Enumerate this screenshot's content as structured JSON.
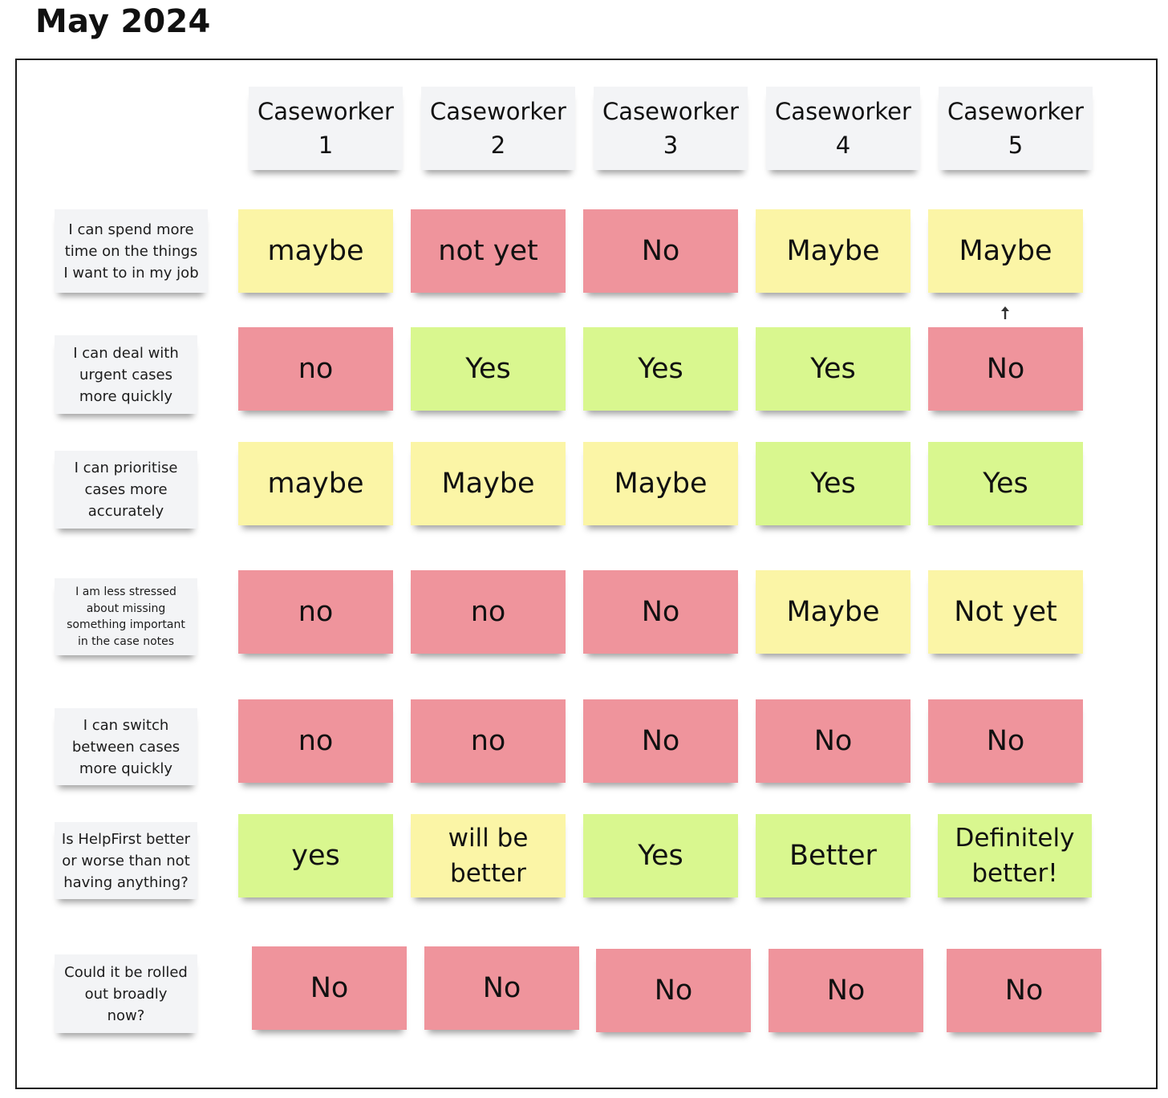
{
  "title": "May 2024",
  "colors": {
    "no": "#ef949c",
    "maybe": "#fbf5a6",
    "yes": "#d9f78f",
    "header": "#f3f4f6",
    "border": "#1a1a1a"
  },
  "columns": [
    {
      "label": "Caseworker\n1"
    },
    {
      "label": "Caseworker\n2"
    },
    {
      "label": "Caseworker\n3"
    },
    {
      "label": "Caseworker\n4"
    },
    {
      "label": "Caseworker\n5"
    }
  ],
  "rows": [
    {
      "label": "I can spend more\ntime on the things\nI want to in my job",
      "cells": [
        {
          "text": "maybe",
          "color": "yellow"
        },
        {
          "text": "not yet",
          "color": "red"
        },
        {
          "text": "No",
          "color": "red"
        },
        {
          "text": "Maybe",
          "color": "yellow"
        },
        {
          "text": "Maybe",
          "color": "yellow"
        }
      ]
    },
    {
      "label": "I can deal with\nurgent cases\nmore quickly",
      "cells": [
        {
          "text": "no",
          "color": "red"
        },
        {
          "text": "Yes",
          "color": "green"
        },
        {
          "text": "Yes",
          "color": "green"
        },
        {
          "text": "Yes",
          "color": "green"
        },
        {
          "text": "No",
          "color": "red"
        }
      ]
    },
    {
      "label": "I can prioritise\ncases more\naccurately",
      "cells": [
        {
          "text": "maybe",
          "color": "yellow"
        },
        {
          "text": "Maybe",
          "color": "yellow"
        },
        {
          "text": "Maybe",
          "color": "yellow"
        },
        {
          "text": "Yes",
          "color": "green"
        },
        {
          "text": "Yes",
          "color": "green"
        }
      ]
    },
    {
      "label": "I am less stressed\nabout missing\nsomething important\nin the case notes",
      "cells": [
        {
          "text": "no",
          "color": "red"
        },
        {
          "text": "no",
          "color": "red"
        },
        {
          "text": "No",
          "color": "red"
        },
        {
          "text": "Maybe",
          "color": "yellow"
        },
        {
          "text": "Not yet",
          "color": "yellow"
        }
      ]
    },
    {
      "label": "I can switch\nbetween cases\nmore quickly",
      "cells": [
        {
          "text": "no",
          "color": "red"
        },
        {
          "text": "no",
          "color": "red"
        },
        {
          "text": "No",
          "color": "red"
        },
        {
          "text": "No",
          "color": "red"
        },
        {
          "text": "No",
          "color": "red"
        }
      ]
    },
    {
      "label": "Is HelpFirst better\nor worse than not\nhaving anything?",
      "cells": [
        {
          "text": "yes",
          "color": "green"
        },
        {
          "text": "will be\nbetter",
          "color": "yellow"
        },
        {
          "text": "Yes",
          "color": "green"
        },
        {
          "text": "Better",
          "color": "green"
        },
        {
          "text": "Definitely\nbetter!",
          "color": "green"
        }
      ]
    },
    {
      "label": "Could it be rolled\nout broadly\nnow?",
      "cells": [
        {
          "text": "No",
          "color": "red"
        },
        {
          "text": "No",
          "color": "red"
        },
        {
          "text": "No",
          "color": "red"
        },
        {
          "text": "No",
          "color": "red"
        },
        {
          "text": "No",
          "color": "red"
        }
      ]
    }
  ]
}
